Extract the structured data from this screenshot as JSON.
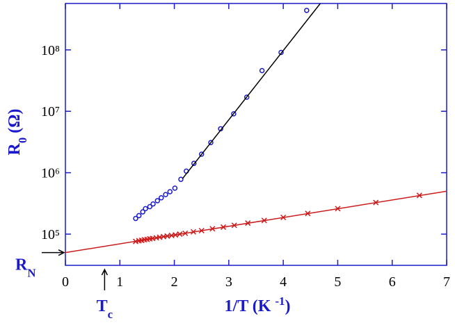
{
  "chart_data": {
    "type": "scatter",
    "log_y": true,
    "xlim": [
      0,
      7
    ],
    "xticks": [
      0,
      1,
      2,
      3,
      4,
      5,
      6,
      7
    ],
    "ylim": [
      31000,
      570000000
    ],
    "yticks": [
      {
        "value": 100000,
        "label": "10⁵"
      },
      {
        "value": 1000000,
        "label": "10⁶"
      },
      {
        "value": 10000000,
        "label": "10⁷"
      },
      {
        "value": 100000000,
        "label": "10⁸"
      }
    ],
    "x_label": [
      {
        "t": "1/T (K "
      },
      {
        "t": "-1",
        "sup": true
      },
      {
        "t": ")"
      }
    ],
    "y_label": [
      {
        "t": "R"
      },
      {
        "t": "0",
        "sub": true
      },
      {
        "t": " (Ω)"
      }
    ],
    "axis_color": "#1a1acc",
    "series": [
      {
        "marker": "circle",
        "color": "#1a1acc",
        "x": [
          1.29,
          1.35,
          1.42,
          1.47,
          1.55,
          1.61,
          1.69,
          1.76,
          1.84,
          1.92,
          2.01,
          2.12,
          2.22,
          2.36,
          2.5,
          2.67,
          2.85,
          3.09,
          3.33,
          3.61,
          3.96,
          4.43
        ],
        "values": [
          180000,
          200000,
          230000,
          260000,
          280000,
          310000,
          350000,
          390000,
          440000,
          490000,
          560000,
          780000,
          1060000,
          1420000,
          2000000,
          3100000,
          5200000,
          9100000,
          17000000,
          46000000,
          91000000,
          440000000
        ]
      },
      {
        "marker": "line",
        "color": "#000000",
        "x": [
          2.15,
          4.68
        ],
        "values": [
          800000,
          570000000
        ]
      },
      {
        "marker": "x",
        "color": "#cc1a1a",
        "x": [
          1.29,
          1.35,
          1.4,
          1.45,
          1.5,
          1.55,
          1.6,
          1.67,
          1.73,
          1.8,
          1.87,
          1.95,
          2.02,
          2.1,
          2.2,
          2.35,
          2.5,
          2.7,
          2.9,
          3.1,
          3.35,
          3.65,
          4.0,
          4.45,
          5.0,
          5.7,
          6.5
        ],
        "values": [
          76000,
          78000,
          79000,
          81000,
          82000,
          84000,
          85000,
          87000,
          89000,
          91000,
          93000,
          95000,
          97000,
          100000,
          103000,
          109000,
          114000,
          122000,
          130000,
          139000,
          151000,
          167000,
          187000,
          217000,
          260000,
          327000,
          427000
        ]
      },
      {
        "marker": "line",
        "color": "#cc1a1a",
        "x": [
          0,
          7
        ],
        "values": [
          50000,
          500000
        ]
      }
    ],
    "annotations": {
      "rn": {
        "parts": [
          {
            "t": "R"
          },
          {
            "t": "N",
            "sub": true
          }
        ],
        "y": 50000
      },
      "tc": {
        "parts": [
          {
            "t": "T"
          },
          {
            "t": "c",
            "sub": true
          }
        ],
        "x": 0.72
      }
    }
  }
}
